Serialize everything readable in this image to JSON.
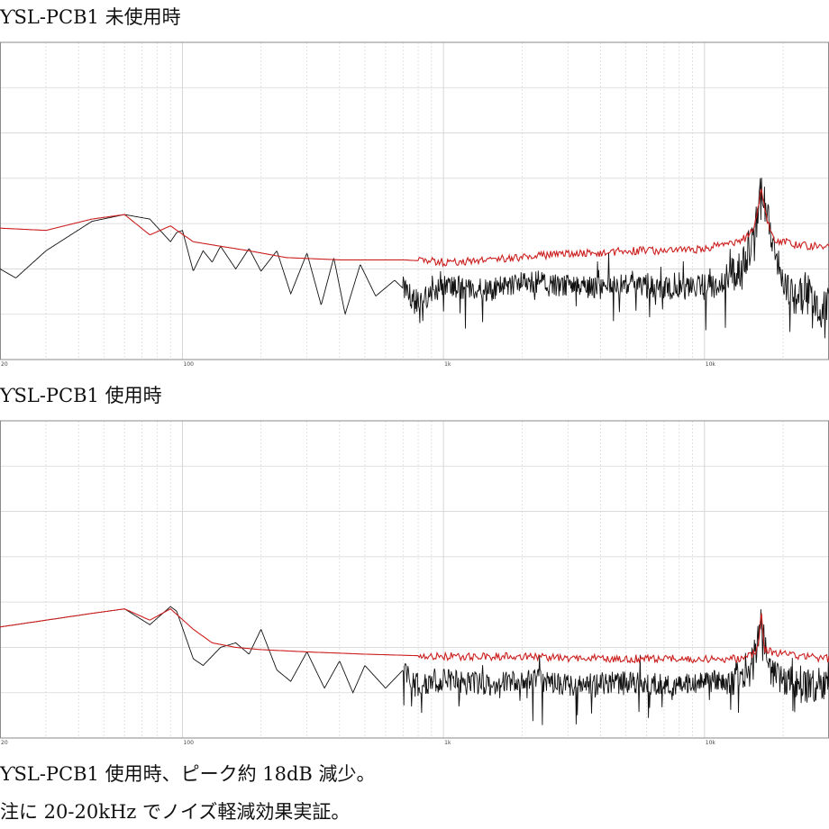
{
  "charts": [
    {
      "title": "ƳSL-PCB1 未使用時"
    },
    {
      "title": "ƳSL-PCB1 使用時"
    }
  ],
  "captions": [
    "ƳSL-PCB1 使用時、ピーク約 18dB 減少。",
    "注に 20-20kHz でノイズ軽減効果実証。"
  ],
  "colors": {
    "peak": "#cc1f1f",
    "trace": "#111111",
    "grid": "#d6d6d6",
    "frame": "#8a8a8a"
  },
  "chart_data": [
    {
      "type": "line",
      "title": "ƳSL-PCB1 未使用時",
      "x_scale": "log",
      "xlim": [
        20,
        30000
      ],
      "ylim": [
        -160,
        -20
      ],
      "x_ticks": [
        {
          "value": 20,
          "label": "20"
        },
        {
          "value": 100,
          "label": "100"
        },
        {
          "value": 1000,
          "label": "1k"
        },
        {
          "value": 10000,
          "label": "10k"
        }
      ],
      "grid": true,
      "series": [
        {
          "role": "peak-hold",
          "color": "#cc1f1f",
          "x": [
            20,
            30,
            45,
            60,
            75,
            90,
            110,
            140,
            180,
            250,
            400,
            700,
            1000,
            1500,
            2000,
            2500,
            3000,
            4000,
            5000,
            6000,
            8000,
            10000,
            11000,
            13000,
            14500,
            15500,
            16500,
            17500,
            18500,
            20000,
            22000,
            25000,
            28000,
            30000
          ],
          "y": [
            -102,
            -103,
            -98,
            -96,
            -105,
            -101,
            -108,
            -110,
            -112,
            -115,
            -116,
            -116,
            -117,
            -116,
            -115,
            -114,
            -113,
            -113,
            -112,
            -112,
            -112,
            -111,
            -110,
            -109,
            -106,
            -101,
            -85,
            -100,
            -107,
            -108,
            -109,
            -110,
            -109,
            -111
          ]
        },
        {
          "role": "spectrum",
          "color": "#111111",
          "x": [
            20,
            23,
            30,
            45,
            60,
            75,
            90,
            95,
            100,
            110,
            120,
            130,
            140,
            160,
            180,
            200,
            230,
            260,
            300,
            340,
            380,
            420,
            480,
            550,
            650,
            800,
            1000,
            1500,
            2000,
            3000,
            4000,
            5000,
            6000,
            8000,
            10000,
            11000,
            12500,
            14000,
            15500,
            16500,
            17500,
            18500,
            20000,
            22000,
            25000,
            28000,
            30000
          ],
          "y": [
            -120,
            -124,
            -112,
            -99,
            -96,
            -98,
            -108,
            -104,
            -103,
            -121,
            -112,
            -117,
            -110,
            -120,
            -111,
            -121,
            -112,
            -131,
            -113,
            -136,
            -115,
            -140,
            -118,
            -132,
            -125,
            -135,
            -128,
            -130,
            -126,
            -128,
            -129,
            -127,
            -128,
            -130,
            -127,
            -129,
            -124,
            -120,
            -108,
            -85,
            -98,
            -115,
            -125,
            -135,
            -128,
            -140,
            -135
          ]
        }
      ]
    },
    {
      "type": "line",
      "title": "ƳSL-PCB1 使用時",
      "x_scale": "log",
      "xlim": [
        20,
        30000
      ],
      "ylim": [
        -160,
        -20
      ],
      "x_ticks": [
        {
          "value": 20,
          "label": "20"
        },
        {
          "value": 100,
          "label": "100"
        },
        {
          "value": 1000,
          "label": "1k"
        },
        {
          "value": 10000,
          "label": "10k"
        }
      ],
      "grid": true,
      "series": [
        {
          "role": "peak-hold",
          "color": "#cc1f1f",
          "x": [
            20,
            30,
            45,
            60,
            75,
            90,
            110,
            130,
            160,
            200,
            300,
            500,
            1000,
            2000,
            4000,
            8000,
            10000,
            13000,
            15000,
            16000,
            16500,
            17000,
            18000,
            20000,
            25000,
            30000
          ],
          "y": [
            -111,
            -108,
            -105,
            -103,
            -108,
            -103,
            -112,
            -118,
            -120,
            -121,
            -122,
            -123,
            -124,
            -124,
            -125,
            -125,
            -125,
            -125,
            -124,
            -121,
            -105,
            -121,
            -122,
            -123,
            -124,
            -125
          ]
        },
        {
          "role": "spectrum",
          "color": "#111111",
          "x": [
            20,
            30,
            45,
            60,
            75,
            90,
            95,
            110,
            120,
            140,
            160,
            180,
            200,
            230,
            260,
            300,
            350,
            400,
            450,
            500,
            600,
            700,
            800,
            1000,
            1500,
            2000,
            3000,
            5000,
            8000,
            10000,
            13000,
            15000,
            16000,
            16500,
            17000,
            18000,
            20000,
            25000,
            30000
          ],
          "y": [
            -111,
            -108,
            -105,
            -103,
            -110,
            -102,
            -104,
            -125,
            -128,
            -120,
            -118,
            -123,
            -112,
            -130,
            -135,
            -122,
            -138,
            -126,
            -140,
            -128,
            -138,
            -130,
            -137,
            -135,
            -137,
            -134,
            -137,
            -136,
            -137,
            -136,
            -134,
            -130,
            -120,
            -105,
            -120,
            -130,
            -136,
            -138,
            -135
          ]
        }
      ]
    }
  ]
}
